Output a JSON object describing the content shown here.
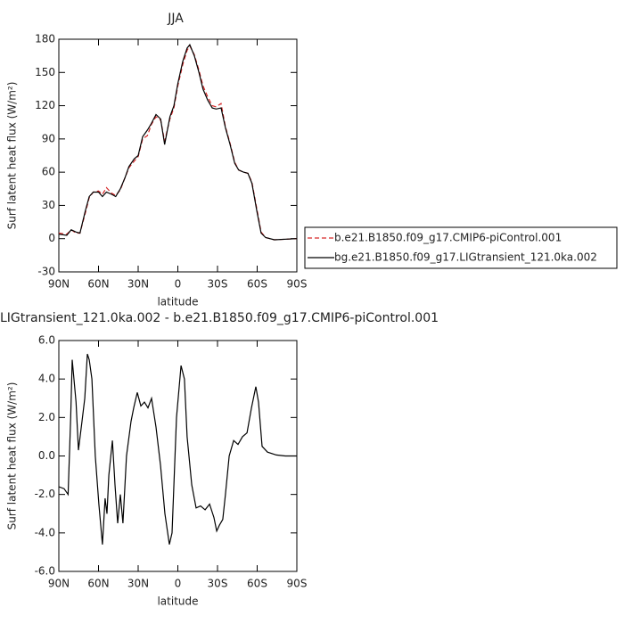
{
  "chart_data": [
    {
      "type": "line",
      "title": "JJA",
      "xlabel": "latitude",
      "ylabel": "Surf latent heat flux (W/m²)",
      "x": [
        90,
        84,
        80.6,
        77,
        74,
        70,
        67,
        64,
        60,
        57,
        54,
        50,
        47,
        43.5,
        40,
        37,
        33,
        30,
        26.6,
        23,
        20,
        16.5,
        13,
        10,
        6,
        3,
        0,
        -3.7,
        -7,
        -9,
        -12.5,
        -16,
        -19,
        -22.6,
        -26,
        -29,
        -32.7,
        -36,
        -39.5,
        -43,
        -46,
        -49.6,
        -53,
        -56,
        -59.7,
        -63,
        -66.4,
        -73,
        -90
      ],
      "series": [
        {
          "name": "b.e21.B1850.f09_g17.CMIP6-piControl.001",
          "color": "#d62728",
          "line_style": "dashed",
          "values": [
            5,
            4,
            8,
            5,
            5,
            23,
            37,
            42,
            43,
            40,
            46,
            41,
            39,
            44,
            55,
            64,
            70,
            74,
            90,
            93,
            103,
            110,
            107,
            88,
            108,
            118,
            138,
            157,
            170,
            174,
            166,
            152,
            138,
            128,
            120,
            119,
            122,
            101,
            86,
            69,
            62,
            60,
            59,
            51,
            27,
            6,
            1,
            -1,
            0
          ]
        },
        {
          "name": "bg.e21.B1850.f09_g17.LIGtransient_121.0ka.002",
          "color": "#000000",
          "line_style": "solid",
          "values": [
            4,
            3,
            8,
            6,
            5,
            25,
            38,
            42,
            42,
            38,
            42,
            40,
            38,
            45,
            55,
            65,
            72,
            75,
            92,
            98,
            104,
            112,
            108,
            85,
            110,
            120,
            140,
            160,
            172,
            175,
            165,
            150,
            135,
            125,
            118,
            117,
            118,
            100,
            85,
            68,
            62,
            60,
            59,
            50,
            25,
            5,
            1,
            -1,
            0
          ]
        }
      ],
      "xlim": [
        90,
        -90
      ],
      "xticks": [
        {
          "value": 90,
          "label": "90N"
        },
        {
          "value": 60,
          "label": "60N"
        },
        {
          "value": 30,
          "label": "30N"
        },
        0,
        {
          "value": -30,
          "label": "30S"
        },
        {
          "value": -60,
          "label": "60S"
        },
        {
          "value": -90,
          "label": "90S"
        }
      ],
      "ylim": [
        -30,
        180
      ],
      "yticks": [
        -30,
        0,
        30,
        60,
        90,
        120,
        150,
        180
      ],
      "legend": "right"
    },
    {
      "type": "line",
      "title": "LIGtransient_121.0ka.002 - b.e21.B1850.f09_g17.CMIP6-piControl.001",
      "xlabel": "latitude",
      "ylabel": "Surf latent heat flux (W/m²)",
      "x": [
        90,
        86,
        83,
        81,
        79.9,
        77,
        75.2,
        72.5,
        70.4,
        68.4,
        67,
        65,
        62.4,
        59.7,
        57,
        55,
        53.6,
        52.2,
        49.5,
        47.5,
        45.5,
        43.5,
        41.5,
        38.8,
        35.4,
        33.4,
        30.7,
        28,
        25.3,
        22.6,
        19.9,
        16.5,
        13.1,
        9.8,
        6.4,
        4.4,
        1,
        -2.4,
        -5,
        -7,
        -10.5,
        -13.8,
        -17.2,
        -20.6,
        -24,
        -27.3,
        -29.4,
        -31.4,
        -34,
        -36,
        -38.8,
        -42.2,
        -45.5,
        -48.9,
        -52.3,
        -55.7,
        -59,
        -61,
        -63.7,
        -67.8,
        -74.5,
        -81.3,
        -90
      ],
      "series": [
        {
          "name": null,
          "color": "#000000",
          "line_style": "solid",
          "values": [
            -1.6,
            -1.7,
            -2.0,
            2.0,
            5.0,
            2.8,
            0.3,
            1.8,
            3.0,
            5.3,
            5.0,
            4.0,
            0,
            -2.5,
            -4.6,
            -2.2,
            -3.0,
            -1.0,
            0.8,
            -1.5,
            -3.5,
            -2.0,
            -3.5,
            0,
            1.8,
            2.5,
            3.3,
            2.6,
            2.8,
            2.5,
            3.0,
            1.5,
            -0.5,
            -3.0,
            -4.6,
            -4.0,
            2.0,
            4.7,
            4.0,
            1.0,
            -1.5,
            -2.7,
            -2.6,
            -2.8,
            -2.5,
            -3.2,
            -3.9,
            -3.6,
            -3.3,
            -2.0,
            0,
            0.8,
            0.6,
            1.0,
            1.2,
            2.5,
            3.6,
            2.8,
            0.5,
            0.2,
            0.05,
            0,
            0
          ]
        }
      ],
      "xlim": [
        90,
        -90
      ],
      "xticks": [
        {
          "value": 90,
          "label": "90N"
        },
        {
          "value": 60,
          "label": "60N"
        },
        {
          "value": 30,
          "label": "30N"
        },
        0,
        {
          "value": -30,
          "label": "30S"
        },
        {
          "value": -60,
          "label": "60S"
        },
        {
          "value": -90,
          "label": "90S"
        }
      ],
      "ylim": [
        -6,
        6
      ],
      "yticks": [
        {
          "value": -6,
          "label": "-6.0"
        },
        {
          "value": -4,
          "label": "-4.0"
        },
        {
          "value": -2,
          "label": "-2.0"
        },
        {
          "value": 0,
          "label": "0.0"
        },
        {
          "value": 2,
          "label": "2.0"
        },
        {
          "value": 4,
          "label": "4.0"
        },
        {
          "value": 6,
          "label": "6.0"
        }
      ]
    }
  ]
}
